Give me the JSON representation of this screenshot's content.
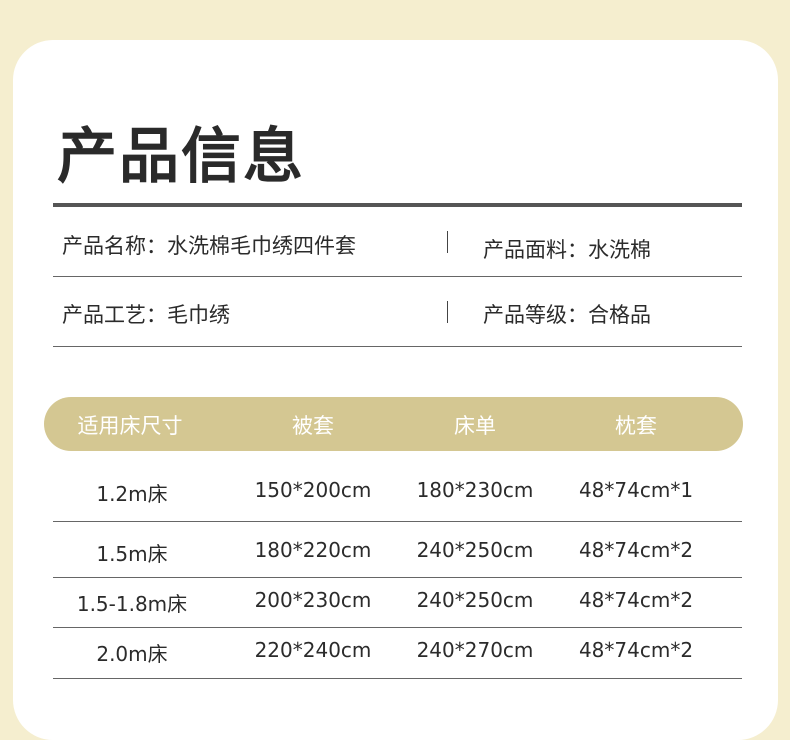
{
  "title": "产品信息",
  "info": {
    "name": "产品名称：水洗棉毛巾绣四件套",
    "fabric": "产品面料：水洗棉",
    "craft": "产品工艺：毛巾绣",
    "grade": "产品等级：合格品"
  },
  "colors": {
    "background": "#f5eecf",
    "header": "#d4c792"
  },
  "table": {
    "headers": [
      "适用床尺寸",
      "被套",
      "床单",
      "枕套"
    ],
    "rows": [
      [
        "1.2m床",
        "150*200cm",
        "180*230cm",
        "48*74cm*1"
      ],
      [
        "1.5m床",
        "180*220cm",
        "240*250cm",
        "48*74cm*2"
      ],
      [
        "1.5-1.8m床",
        "200*230cm",
        "240*250cm",
        "48*74cm*2"
      ],
      [
        "2.0m床",
        "220*240cm",
        "240*270cm",
        "48*74cm*2"
      ]
    ]
  }
}
